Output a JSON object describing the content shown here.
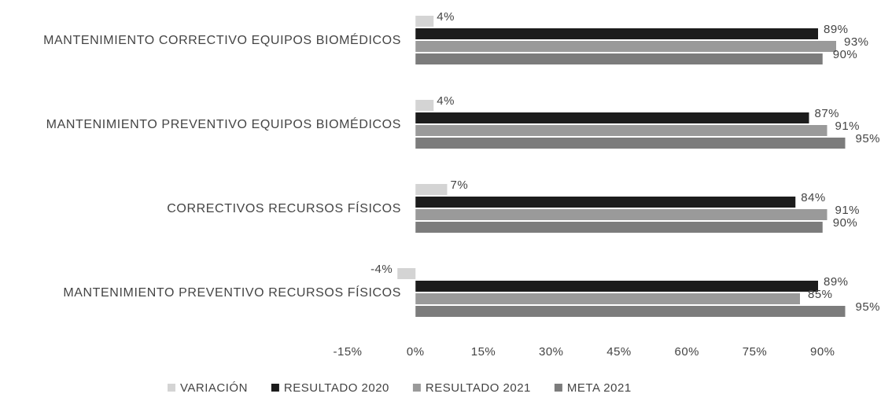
{
  "chart_data": {
    "type": "barh",
    "categories": [
      "MANTENIMIENTO CORRECTIVO EQUIPOS BIOMÉDICOS",
      "MANTENIMIENTO PREVENTIVO EQUIPOS BIOMÉDICOS",
      "CORRECTIVOS RECURSOS FÍSICOS",
      "MANTENIMIENTO PREVENTIVO RECURSOS FÍSICOS"
    ],
    "series": [
      {
        "name": "VARIACIÓN",
        "color": "#d4d4d4",
        "values": [
          4,
          4,
          7,
          -4
        ],
        "value_labels": [
          "4%",
          "4%",
          "7%",
          "-4%"
        ]
      },
      {
        "name": "RESULTADO 2020",
        "color": "#1c1c1c",
        "values": [
          89,
          87,
          84,
          89
        ],
        "value_labels": [
          "89%",
          "87%",
          "84%",
          "89%"
        ]
      },
      {
        "name": "RESULTADO 2021",
        "color": "#9a9a9a",
        "values": [
          93,
          91,
          91,
          85
        ],
        "value_labels": [
          "93%",
          "91%",
          "91%",
          "85%"
        ]
      },
      {
        "name": "META 2021",
        "color": "#7c7c7c",
        "values": [
          90,
          95,
          90,
          95
        ],
        "value_labels": [
          "90%",
          "95%",
          "90%",
          "95%"
        ]
      }
    ],
    "xlim": [
      -15,
      97
    ],
    "xticks": [
      {
        "value": -15,
        "label": "-15%"
      },
      {
        "value": 0,
        "label": "0%"
      },
      {
        "value": 15,
        "label": "15%"
      },
      {
        "value": 30,
        "label": "30%"
      },
      {
        "value": 45,
        "label": "45%"
      },
      {
        "value": 60,
        "label": "60%"
      },
      {
        "value": 75,
        "label": "75%"
      },
      {
        "value": 90,
        "label": "90%"
      }
    ],
    "legend": "bottom"
  }
}
